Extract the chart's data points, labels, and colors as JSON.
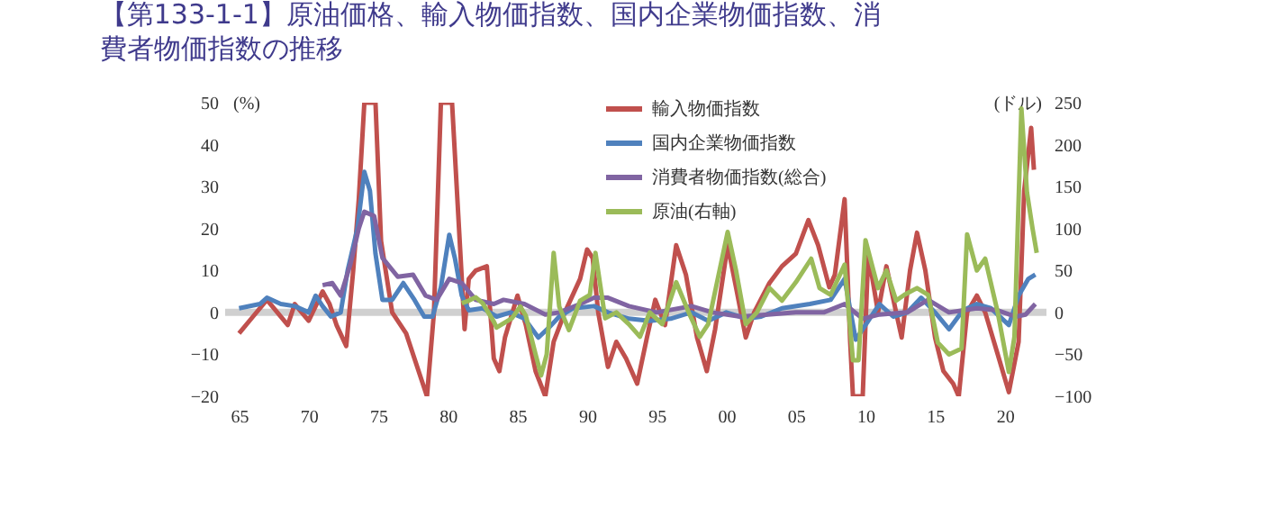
{
  "chart_data": {
    "type": "line",
    "title": [
      "【第133-1-1】原油価格、輸入物価指数、国内企業物価指数、消",
      "費者物価指数の推移"
    ],
    "ylabel": "(%)",
    "y2label": "(ドル)",
    "xlim": [
      1964,
      2023
    ],
    "xticks": [
      {
        "value": 1965,
        "label": "65"
      },
      {
        "value": 1970,
        "label": "70"
      },
      {
        "value": 1975,
        "label": "75"
      },
      {
        "value": 1980,
        "label": "80"
      },
      {
        "value": 1985,
        "label": "85"
      },
      {
        "value": 1990,
        "label": "90"
      },
      {
        "value": 1995,
        "label": "95"
      },
      {
        "value": 2000,
        "label": "00"
      },
      {
        "value": 2005,
        "label": "05"
      },
      {
        "value": 2010,
        "label": "10"
      },
      {
        "value": 2015,
        "label": "15"
      },
      {
        "value": 2020,
        "label": "20"
      }
    ],
    "ylim": [
      -20,
      50
    ],
    "yticks": [
      -20,
      -10,
      0,
      10,
      20,
      30,
      40,
      50
    ],
    "y2lim": [
      -100,
      250
    ],
    "y2ticks": [
      -100,
      -50,
      0,
      50,
      100,
      150,
      200,
      250
    ],
    "grid": false,
    "legend": "top",
    "marker": "none",
    "line_style": "solid",
    "ref_lines": [
      {
        "axis": "y",
        "value": 0,
        "color": "#d0d0d0"
      }
    ],
    "series": [
      {
        "name": "輸入物価指数",
        "color": "#c0504d",
        "x": [
          1965,
          1966,
          1967,
          1968.5,
          1969,
          1970,
          1971,
          1971.5,
          1972,
          1972.7,
          1973.2,
          1973.6,
          1974,
          1974.4,
          1974.8,
          1975.2,
          1976,
          1977,
          1978,
          1978.5,
          1979,
          1979.5,
          1980.3,
          1980.8,
          1981.2,
          1981.5,
          1982,
          1982.8,
          1983.3,
          1983.7,
          1984.1,
          1985,
          1985.6,
          1986.3,
          1987,
          1987.6,
          1988.4,
          1989.5,
          1990,
          1990.4,
          1990.8,
          1991.5,
          1992.1,
          1992.8,
          1993.6,
          1994.3,
          1994.9,
          1995.6,
          1996.4,
          1997.1,
          1997.9,
          1998.6,
          1999.2,
          2000.1,
          2000.7,
          2001.4,
          2002,
          2003.1,
          2004,
          2005,
          2005.9,
          2006.6,
          2007.4,
          2007.8,
          2008.5,
          2008.9,
          2009.1,
          2009.8,
          2010.2,
          2010.9,
          2011.5,
          2012.2,
          2012.6,
          2013.2,
          2013.7,
          2014.3,
          2015,
          2015.6,
          2016.3,
          2016.7,
          2017.3,
          2018,
          2018.6,
          2019.5,
          2020.3,
          2021,
          2021.4,
          2021.9,
          2022.1
        ],
        "values": [
          -5,
          -1,
          3,
          -3,
          2,
          -2,
          5,
          2,
          -3,
          -8,
          10,
          27,
          50,
          50,
          50,
          17,
          0,
          -5,
          -15,
          -20,
          0,
          50,
          50,
          20,
          -4,
          8,
          10,
          11,
          -11,
          -14,
          -6,
          4,
          -3,
          -14,
          -20,
          -7,
          0,
          8,
          15,
          13,
          0,
          -13,
          -7,
          -11,
          -17,
          -6,
          3,
          -3,
          16,
          9,
          -6,
          -14,
          -4,
          16,
          6,
          -6,
          0,
          7,
          11,
          14,
          22,
          16,
          6,
          9,
          27,
          -7,
          -20,
          -20,
          14,
          0,
          11,
          0,
          -6,
          10,
          19,
          10,
          -6,
          -14,
          -17,
          -20,
          0,
          4,
          0,
          -10,
          -19,
          -7,
          29,
          44,
          34
        ]
      },
      {
        "name": "国内企業物価指数",
        "color": "#4f81bd",
        "x": [
          1965,
          1966.5,
          1967,
          1968,
          1969,
          1970,
          1970.5,
          1971,
          1971.6,
          1972.3,
          1972.8,
          1973.5,
          1974,
          1974.4,
          1974.8,
          1975.3,
          1976,
          1976.8,
          1977.6,
          1978.3,
          1978.9,
          1979.5,
          1980.1,
          1980.5,
          1981,
          1981.5,
          1982.5,
          1983.5,
          1984.5,
          1985.5,
          1986.5,
          1987.3,
          1988,
          1989,
          1990.5,
          1991.5,
          1993,
          1994.5,
          1996,
          1997.5,
          1998.7,
          2000,
          2001.5,
          2002.5,
          2004,
          2006,
          2007.5,
          2008.5,
          2009.3,
          2010,
          2011,
          2012,
          2013,
          2014,
          2015,
          2016,
          2017,
          2018,
          2019,
          2020.3,
          2021,
          2021.7,
          2022.2
        ],
        "values": [
          1,
          2,
          3.5,
          2,
          1.5,
          0,
          4,
          1.5,
          -1,
          0,
          10,
          20,
          33.5,
          29,
          14,
          3,
          3,
          7,
          3,
          -1,
          -1,
          6,
          18.5,
          13,
          4,
          0.5,
          1,
          -1,
          0,
          -1.5,
          -6,
          -3.5,
          -1,
          1,
          1.5,
          0,
          -1.5,
          -2,
          -1.5,
          0,
          -2,
          0,
          -1.5,
          -1,
          1,
          2,
          3,
          8,
          -6.5,
          -3,
          2,
          -1,
          0,
          3.5,
          0,
          -4,
          0.5,
          2,
          1,
          -3,
          4,
          8,
          9
        ]
      },
      {
        "name": "消費者物価指数(総合)",
        "color": "#8064a2",
        "x": [
          1971,
          1971.7,
          1972.3,
          1973,
          1973.6,
          1974,
          1974.7,
          1975.3,
          1976.4,
          1977.5,
          1978.4,
          1979.2,
          1980.1,
          1981,
          1982,
          1983.3,
          1984,
          1985.5,
          1987,
          1988,
          1989.5,
          1990.5,
          1991.5,
          1993,
          1995,
          1997.5,
          1999,
          2001,
          2003,
          2005,
          2007,
          2008.5,
          2009.8,
          2011,
          2013,
          2014.5,
          2016,
          2018,
          2019.5,
          2020.8,
          2021.5,
          2022.2
        ],
        "values": [
          6.5,
          7,
          4,
          11.5,
          20,
          24,
          23,
          13,
          8.5,
          9,
          4,
          3,
          8,
          7,
          3,
          2,
          3,
          2,
          -0.5,
          0,
          2,
          3.5,
          3.5,
          1.5,
          0,
          1.5,
          0,
          -1,
          -0.5,
          0,
          0,
          2,
          -1.5,
          -0.5,
          0,
          3,
          0,
          1,
          0.5,
          -1,
          -0.5,
          2
        ]
      },
      {
        "name": "原油(右軸)",
        "color": "#9bbb59",
        "axis": "y2",
        "x": [
          1981,
          1981.5,
          1982,
          1982.5,
          1983.3,
          1983.5,
          1984.6,
          1985.2,
          1985.6,
          1986.3,
          1986.7,
          1987.1,
          1987.6,
          1988,
          1988.7,
          1989.5,
          1990.2,
          1990.6,
          1991.3,
          1992.1,
          1993,
          1993.8,
          1994.5,
          1995.4,
          1996.4,
          1997.3,
          1998.1,
          1998.7,
          2000.1,
          2000.7,
          2001.4,
          2002.2,
          2003.1,
          2004,
          2005,
          2006.1,
          2006.7,
          2007.5,
          2008.5,
          2009.1,
          2009.5,
          2010,
          2010.9,
          2011.5,
          2012.2,
          2012.8,
          2013.7,
          2014.5,
          2015.2,
          2016,
          2016.9,
          2017.3,
          2018,
          2018.6,
          2019.5,
          2020.3,
          2020.7,
          2021.2,
          2021.6,
          2022,
          2022.3
        ],
        "values": [
          11,
          14,
          18,
          11,
          -11,
          -18,
          -7,
          7,
          -4,
          -50,
          -75,
          -50,
          71,
          7,
          -21,
          14,
          21,
          71,
          -7,
          0,
          -14,
          -29,
          0,
          -14,
          36,
          0,
          -29,
          -14,
          96,
          50,
          -14,
          0,
          29,
          14,
          36,
          64,
          29,
          21,
          57,
          -57,
          -57,
          86,
          29,
          50,
          14,
          21,
          29,
          21,
          -36,
          -50,
          -43,
          93,
          50,
          64,
          0,
          -71,
          -29,
          243,
          143,
          100,
          71
        ]
      }
    ]
  }
}
